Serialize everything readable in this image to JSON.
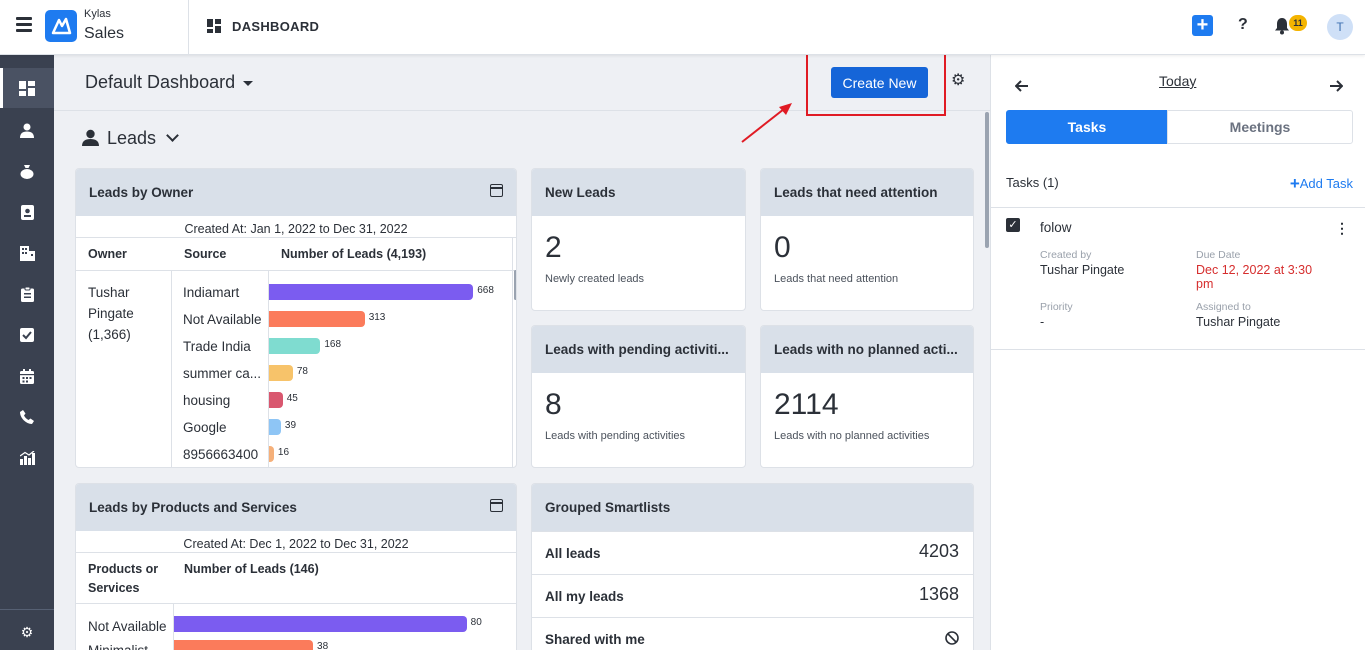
{
  "app": {
    "brand_top": "Kylas",
    "brand_bottom": "Sales",
    "page_title": "DASHBOARD",
    "notification_count": "11",
    "avatar_initial": "T"
  },
  "header": {
    "dashboard_name": "Default Dashboard",
    "create_label": "Create New"
  },
  "section": {
    "title": "Leads"
  },
  "leads_by_owner": {
    "title": "Leads by Owner",
    "range": "Created At: Jan 1, 2022 to Dec 31, 2022",
    "columns": [
      "Owner",
      "Source",
      "Number of Leads (4,193)"
    ],
    "owner": [
      "Tushar",
      "Pingate",
      "(1,366)"
    ],
    "rows": [
      {
        "source": "Indiamart",
        "value": 668,
        "color": "#7b5cf0"
      },
      {
        "source": "Not Available",
        "value": 313,
        "color": "#fb7b5b"
      },
      {
        "source": "Trade India",
        "value": 168,
        "color": "#7fdcd0"
      },
      {
        "source": "summer ca...",
        "value": 78,
        "color": "#f7c36a"
      },
      {
        "source": "housing",
        "value": 45,
        "color": "#d9576f"
      },
      {
        "source": "Google",
        "value": 39,
        "color": "#8ec5f5"
      },
      {
        "source": "8956663400",
        "value": 16,
        "color": "#f5b07a"
      }
    ]
  },
  "stats": [
    {
      "title": "New Leads",
      "value": "2",
      "caption": "Newly created leads"
    },
    {
      "title": "Leads that need attention",
      "value": "0",
      "caption": "Leads that need attention"
    },
    {
      "title": "Leads with pending activiti...",
      "value": "8",
      "caption": "Leads with pending activities"
    },
    {
      "title": "Leads with no planned acti...",
      "value": "2114",
      "caption": "Leads with no planned activities"
    }
  ],
  "leads_by_products": {
    "title": "Leads by Products and Services",
    "range": "Created At: Dec 1, 2022 to Dec 31, 2022",
    "col1_line1": "Products or",
    "col1_line2": "Services",
    "col2": "Number of Leads (146)",
    "rows": [
      {
        "name": "Not Available",
        "value": 80,
        "color": "#7b5cf0"
      },
      {
        "name": "Minimalist...",
        "value": 38,
        "color": "#fb7b5b"
      }
    ]
  },
  "smartlists": {
    "title": "Grouped Smartlists",
    "items": [
      {
        "name": "All leads",
        "count": "4203"
      },
      {
        "name": "All my leads",
        "count": "1368"
      },
      {
        "name": "Shared with me",
        "count": ""
      }
    ]
  },
  "rightpanel": {
    "date_label": "Today",
    "tabs": [
      "Tasks",
      "Meetings"
    ],
    "tasks_count": "Tasks (1)",
    "add_task": "Add Task",
    "task": {
      "title": "folow",
      "created_by_label": "Created by",
      "created_by": "Tushar Pingate",
      "due_label": "Due Date",
      "due_line1": "Dec 12, 2022 at 3:30",
      "due_line2": "pm",
      "priority_label": "Priority",
      "priority": "-",
      "assigned_label": "Assigned to",
      "assigned": "Tushar Pingate"
    }
  },
  "icons": {
    "sidebar": [
      "dashboard-icon",
      "user-icon",
      "money-bag-icon",
      "contact-card-icon",
      "building-icon",
      "clipboard-icon",
      "checkbox-icon",
      "calendar-icon",
      "phone-icon",
      "reports-icon",
      "settings-icon"
    ]
  }
}
